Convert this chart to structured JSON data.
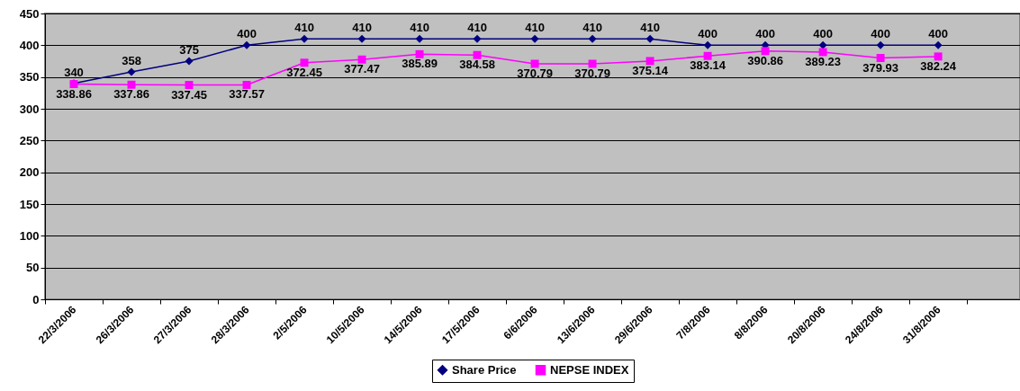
{
  "chart_data": {
    "type": "line",
    "categories": [
      "22/3/2006",
      "26/3/2006",
      "27/3/2006",
      "28/3/2006",
      "2/5/2006",
      "10/5/2006",
      "14/5/2006",
      "17/5/2006",
      "6/6/2006",
      "13/6/2006",
      "29/6/2006",
      "7/8/2006",
      "8/8/2006",
      "20/8/2006",
      "24/8/2006",
      "31/8/2006"
    ],
    "series": [
      {
        "name": "Share Price",
        "color": "#000080",
        "marker": "diamond",
        "values": [
          340,
          358,
          375,
          400,
          410,
          410,
          410,
          410,
          410,
          410,
          410,
          400,
          400,
          400,
          400,
          400
        ]
      },
      {
        "name": "NEPSE INDEX",
        "color": "#ff00ff",
        "marker": "square",
        "values": [
          338.86,
          337.86,
          337.45,
          337.57,
          372.45,
          377.47,
          385.89,
          384.58,
          370.79,
          370.79,
          375.14,
          383.14,
          390.86,
          389.23,
          379.93,
          382.24
        ]
      }
    ],
    "ylim": [
      0,
      450
    ],
    "yticks": [
      0,
      50,
      100,
      150,
      200,
      250,
      300,
      350,
      400,
      450
    ],
    "grid": "y",
    "legend": "bottom",
    "data_labels": true
  }
}
